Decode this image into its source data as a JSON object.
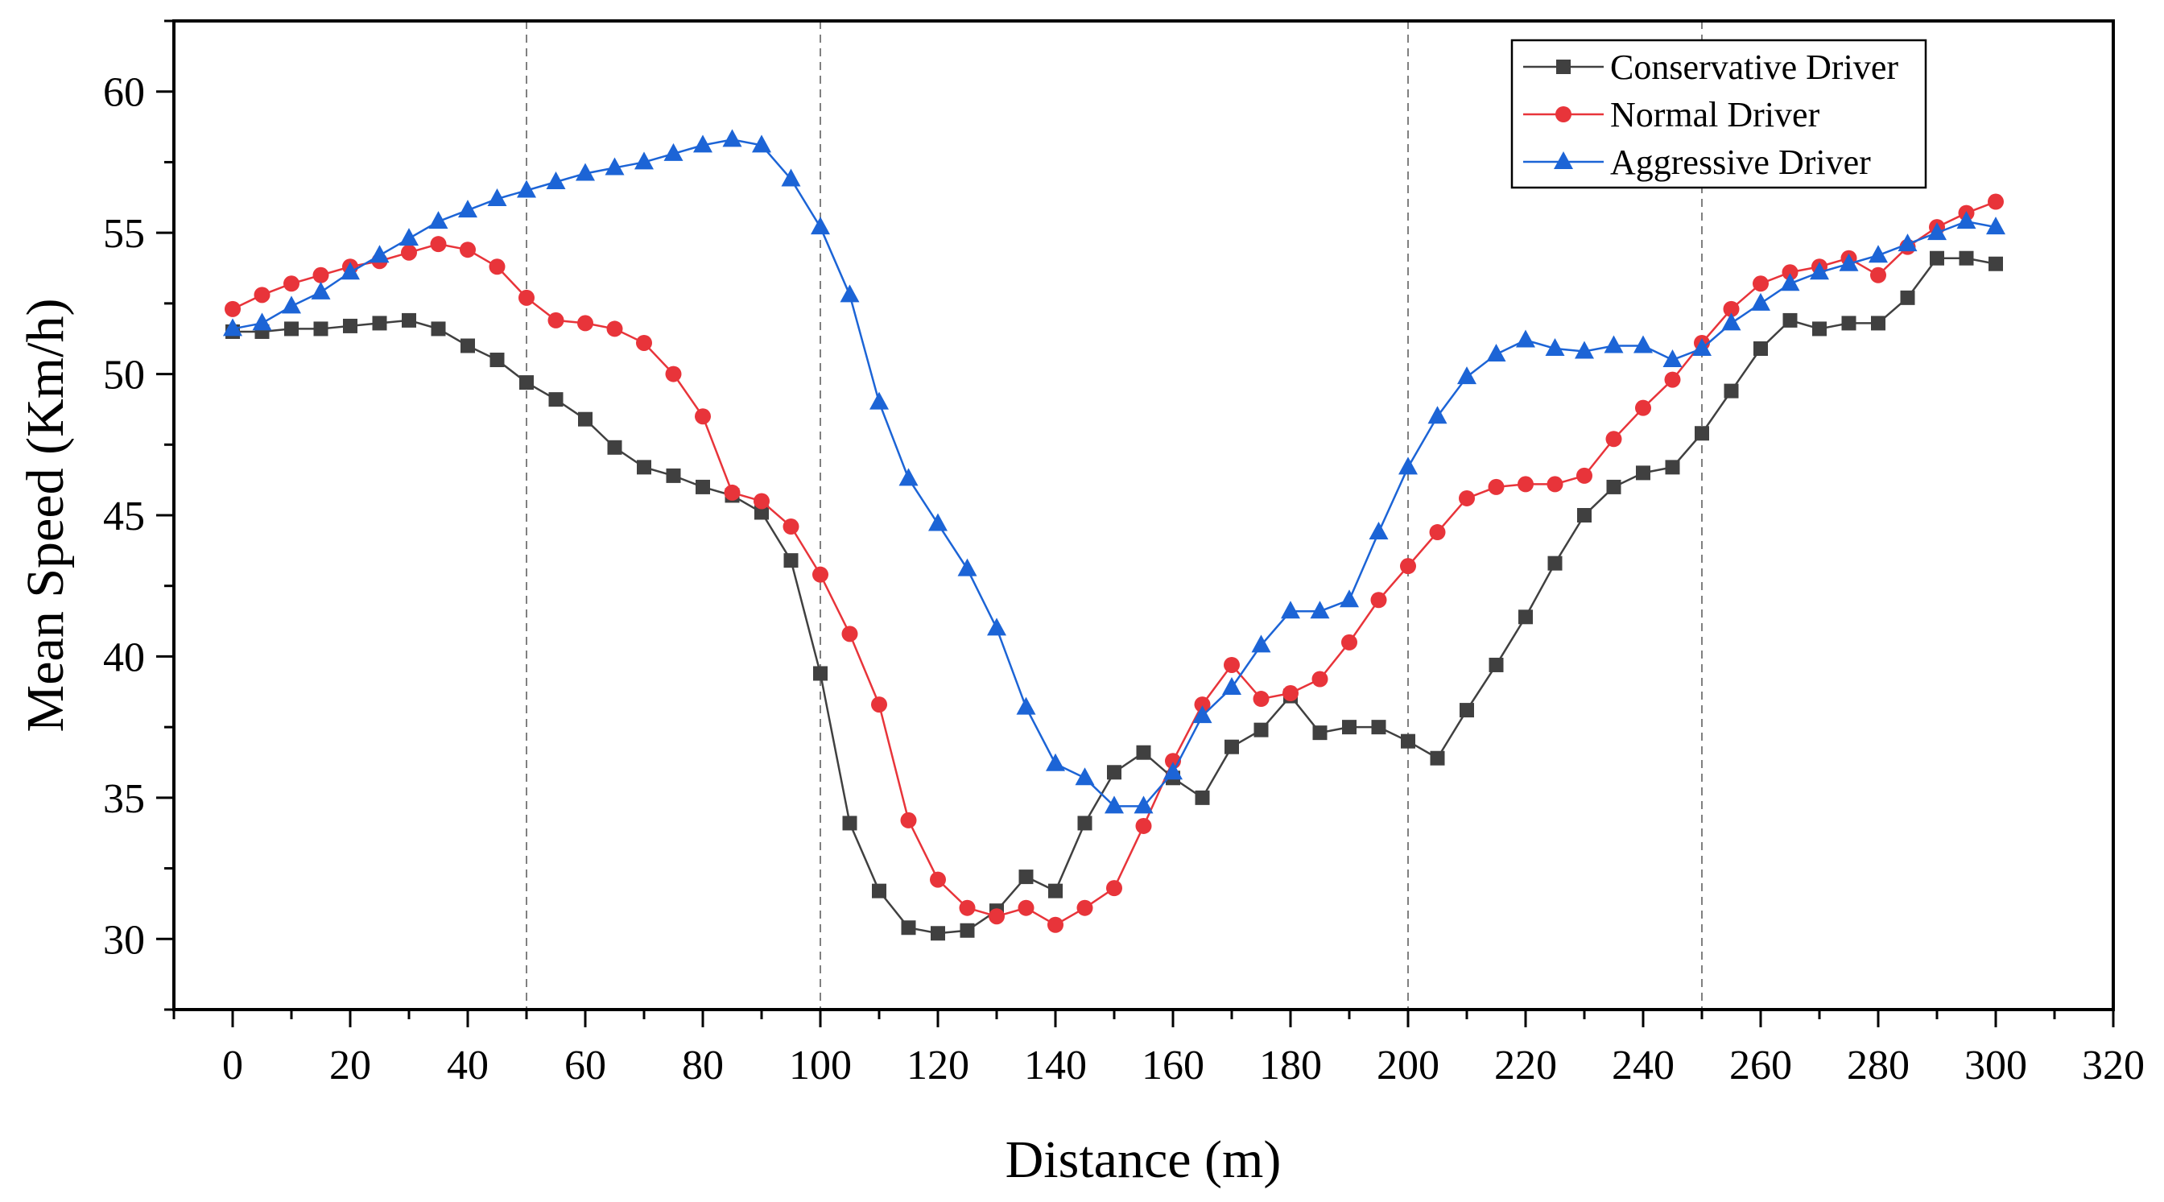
{
  "chart_data": {
    "type": "line",
    "title": "",
    "xlabel": "Distance (m)",
    "ylabel": "Mean Speed (Km/h)",
    "xlim": [
      -10,
      320
    ],
    "ylim": [
      27.5,
      62.5
    ],
    "xticks": [
      0,
      20,
      40,
      60,
      80,
      100,
      120,
      140,
      160,
      180,
      200,
      220,
      240,
      260,
      280,
      300,
      320
    ],
    "yticks": [
      30,
      35,
      40,
      45,
      50,
      55,
      60
    ],
    "grid": false,
    "legend_position": "top-right",
    "reference_lines_x": [
      50,
      100,
      200,
      250
    ],
    "x": [
      0,
      5,
      10,
      15,
      20,
      25,
      30,
      35,
      40,
      45,
      50,
      55,
      60,
      65,
      70,
      75,
      80,
      85,
      90,
      95,
      100,
      105,
      110,
      115,
      120,
      125,
      130,
      135,
      140,
      145,
      150,
      155,
      160,
      165,
      170,
      175,
      180,
      185,
      190,
      195,
      200,
      205,
      210,
      215,
      220,
      225,
      230,
      235,
      240,
      245,
      250,
      255,
      260,
      265,
      270,
      275,
      280,
      285,
      290,
      295,
      300
    ],
    "series": [
      {
        "name": "Conservative Driver",
        "color": "#404040",
        "marker": "square",
        "values": [
          51.5,
          51.5,
          51.6,
          51.6,
          51.7,
          51.8,
          51.9,
          51.6,
          51.0,
          50.5,
          49.7,
          49.1,
          48.4,
          47.4,
          46.7,
          46.4,
          46.0,
          45.7,
          45.1,
          43.4,
          39.4,
          34.1,
          31.7,
          30.4,
          30.2,
          30.3,
          31.0,
          32.2,
          31.7,
          34.1,
          35.9,
          36.6,
          35.7,
          35.0,
          36.8,
          37.4,
          38.6,
          37.3,
          37.5,
          37.5,
          37.0,
          36.4,
          38.1,
          39.7,
          41.4,
          43.3,
          45.0,
          46.0,
          46.5,
          46.7,
          47.9,
          49.4,
          50.9,
          51.9,
          51.6,
          51.8,
          51.8,
          52.7,
          54.1,
          54.1,
          53.9
        ]
      },
      {
        "name": "Normal Driver",
        "color": "#e8343a",
        "marker": "circle",
        "values": [
          52.3,
          52.8,
          53.2,
          53.5,
          53.8,
          54.0,
          54.3,
          54.6,
          54.4,
          53.8,
          52.7,
          51.9,
          51.8,
          51.6,
          51.1,
          50.0,
          48.5,
          45.8,
          45.5,
          44.6,
          42.9,
          40.8,
          38.3,
          34.2,
          32.1,
          31.1,
          30.8,
          31.1,
          30.5,
          31.1,
          31.8,
          34.0,
          36.3,
          38.3,
          39.7,
          38.5,
          38.7,
          39.2,
          40.5,
          42.0,
          43.2,
          44.4,
          45.6,
          46.0,
          46.1,
          46.1,
          46.4,
          47.7,
          48.8,
          49.8,
          51.1,
          52.3,
          53.2,
          53.6,
          53.8,
          54.1,
          53.5,
          54.5,
          55.2,
          55.7,
          56.1
        ]
      },
      {
        "name": "Aggressive Driver",
        "color": "#1c64d6",
        "marker": "triangle",
        "values": [
          51.6,
          51.8,
          52.4,
          52.9,
          53.6,
          54.2,
          54.8,
          55.4,
          55.8,
          56.2,
          56.5,
          56.8,
          57.1,
          57.3,
          57.5,
          57.8,
          58.1,
          58.3,
          58.1,
          56.9,
          55.2,
          52.8,
          49.0,
          46.3,
          44.7,
          43.1,
          41.0,
          38.2,
          36.2,
          35.7,
          34.7,
          34.7,
          35.9,
          37.9,
          38.9,
          40.4,
          41.6,
          41.6,
          42.0,
          44.4,
          46.7,
          48.5,
          49.9,
          50.7,
          51.2,
          50.9,
          50.8,
          51.0,
          51.0,
          50.5,
          50.9,
          51.8,
          52.5,
          53.2,
          53.6,
          53.9,
          54.2,
          54.6,
          55.0,
          55.4,
          55.2
        ]
      }
    ]
  }
}
